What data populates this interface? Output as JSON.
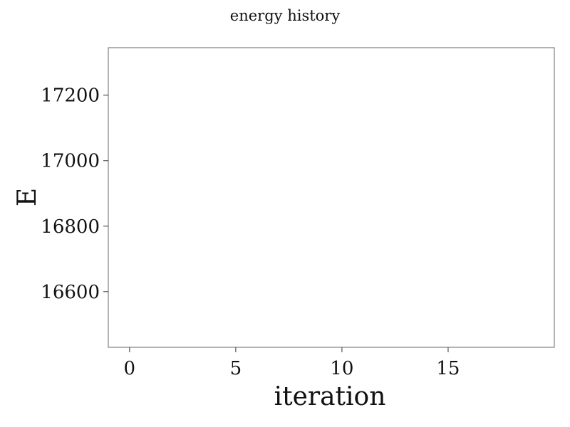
{
  "chart_data": {
    "type": "line",
    "title": "energy history",
    "xlabel": "iteration",
    "ylabel": "E",
    "xlim": [
      -1,
      20
    ],
    "ylim": [
      16430,
      17345
    ],
    "x_ticks": [
      0,
      5,
      10,
      15
    ],
    "x_tick_labels": [
      "0",
      "5",
      "10",
      "15"
    ],
    "y_ticks": [
      16600,
      16800,
      17000,
      17200
    ],
    "y_tick_labels": [
      "16600",
      "16800",
      "17000",
      "17200"
    ],
    "series": [],
    "grid": false,
    "legend": "none"
  }
}
